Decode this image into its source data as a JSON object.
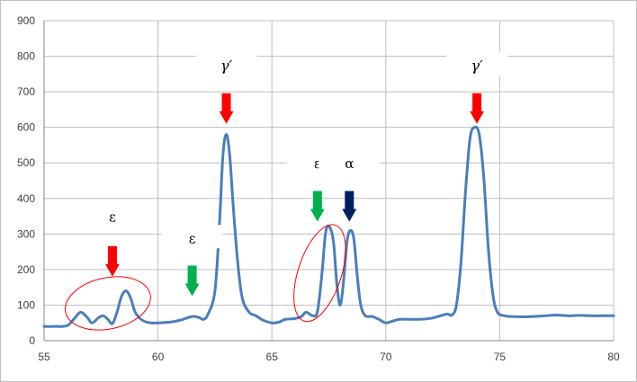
{
  "chart_data": {
    "type": "line",
    "title": "",
    "xlabel": "",
    "ylabel": "",
    "xlim": [
      55,
      80
    ],
    "ylim": [
      0,
      900
    ],
    "x_ticks": [
      55,
      60,
      65,
      70,
      75,
      80
    ],
    "y_ticks": [
      0,
      100,
      200,
      300,
      400,
      500,
      600,
      700,
      800,
      900
    ],
    "grid": "major gridlines on both axes",
    "legend": "none",
    "series": [
      {
        "color": "#4a7ebb",
        "points": [
          [
            55.0,
            40
          ],
          [
            55.5,
            40
          ],
          [
            56.0,
            42
          ],
          [
            56.3,
            60
          ],
          [
            56.6,
            80
          ],
          [
            56.9,
            65
          ],
          [
            57.1,
            50
          ],
          [
            57.4,
            65
          ],
          [
            57.6,
            70
          ],
          [
            57.8,
            60
          ],
          [
            58.0,
            48
          ],
          [
            58.2,
            80
          ],
          [
            58.4,
            125
          ],
          [
            58.6,
            140
          ],
          [
            58.8,
            120
          ],
          [
            59.0,
            80
          ],
          [
            59.3,
            58
          ],
          [
            59.7,
            50
          ],
          [
            60.5,
            52
          ],
          [
            61.0,
            58
          ],
          [
            61.5,
            68
          ],
          [
            61.8,
            65
          ],
          [
            62.0,
            60
          ],
          [
            62.2,
            75
          ],
          [
            62.5,
            140
          ],
          [
            62.7,
            330
          ],
          [
            62.85,
            520
          ],
          [
            63.0,
            580
          ],
          [
            63.15,
            520
          ],
          [
            63.3,
            380
          ],
          [
            63.5,
            220
          ],
          [
            63.7,
            120
          ],
          [
            64.0,
            80
          ],
          [
            64.3,
            70
          ],
          [
            64.6,
            58
          ],
          [
            65.0,
            50
          ],
          [
            65.3,
            52
          ],
          [
            65.6,
            60
          ],
          [
            66.0,
            62
          ],
          [
            66.3,
            68
          ],
          [
            66.5,
            80
          ],
          [
            66.8,
            70
          ],
          [
            67.0,
            82
          ],
          [
            67.2,
            190
          ],
          [
            67.35,
            300
          ],
          [
            67.5,
            322
          ],
          [
            67.7,
            280
          ],
          [
            67.85,
            160
          ],
          [
            68.0,
            100
          ],
          [
            68.15,
            170
          ],
          [
            68.3,
            280
          ],
          [
            68.45,
            310
          ],
          [
            68.6,
            285
          ],
          [
            68.75,
            180
          ],
          [
            68.9,
            100
          ],
          [
            69.1,
            70
          ],
          [
            69.4,
            68
          ],
          [
            69.7,
            60
          ],
          [
            70.0,
            50
          ],
          [
            70.3,
            55
          ],
          [
            70.6,
            60
          ],
          [
            71.0,
            60
          ],
          [
            71.5,
            60
          ],
          [
            72.0,
            63
          ],
          [
            72.4,
            70
          ],
          [
            72.7,
            75
          ],
          [
            72.9,
            72
          ],
          [
            73.1,
            100
          ],
          [
            73.3,
            220
          ],
          [
            73.5,
            420
          ],
          [
            73.7,
            570
          ],
          [
            73.9,
            600
          ],
          [
            74.1,
            580
          ],
          [
            74.3,
            460
          ],
          [
            74.5,
            260
          ],
          [
            74.7,
            130
          ],
          [
            74.9,
            80
          ],
          [
            75.2,
            70
          ],
          [
            75.5,
            68
          ],
          [
            76.0,
            67
          ],
          [
            76.5,
            68
          ],
          [
            77.0,
            70
          ],
          [
            77.5,
            72
          ],
          [
            78.0,
            70
          ],
          [
            78.5,
            71
          ],
          [
            79.0,
            70
          ],
          [
            79.5,
            70
          ],
          [
            80.0,
            70
          ]
        ]
      }
    ],
    "annotations": [
      {
        "label": "ε",
        "arrow_color": "#ff0000",
        "x": 58.0,
        "arrow_tip_y": 180,
        "text_y": 345
      },
      {
        "label": "ε",
        "arrow_color": "#00b050",
        "x": 61.5,
        "arrow_tip_y": 125,
        "text_y": 285
      },
      {
        "label": "γ′",
        "arrow_color": "#ff0000",
        "x": 63.0,
        "arrow_tip_y": 610,
        "text_y": 770
      },
      {
        "label": "ε",
        "arrow_color": "#00b050",
        "x": 67.0,
        "arrow_tip_y": 335,
        "text_y": 495
      },
      {
        "label": "α",
        "arrow_color": "#002060",
        "x": 68.4,
        "arrow_tip_y": 335,
        "text_y": 495
      },
      {
        "label": "γ′",
        "arrow_color": "#ff0000",
        "x": 74.0,
        "arrow_tip_y": 610,
        "text_y": 770
      }
    ],
    "circles": [
      {
        "color": "#ff0000",
        "cx": 57.8,
        "cy": 105,
        "rx_data": 1.9,
        "ry_data": 72,
        "rotate_deg": -12
      },
      {
        "color": "#ff0000",
        "cx": 67.1,
        "cy": 190,
        "rx_data": 0.95,
        "ry_data": 142,
        "rotate_deg": 18
      }
    ]
  }
}
